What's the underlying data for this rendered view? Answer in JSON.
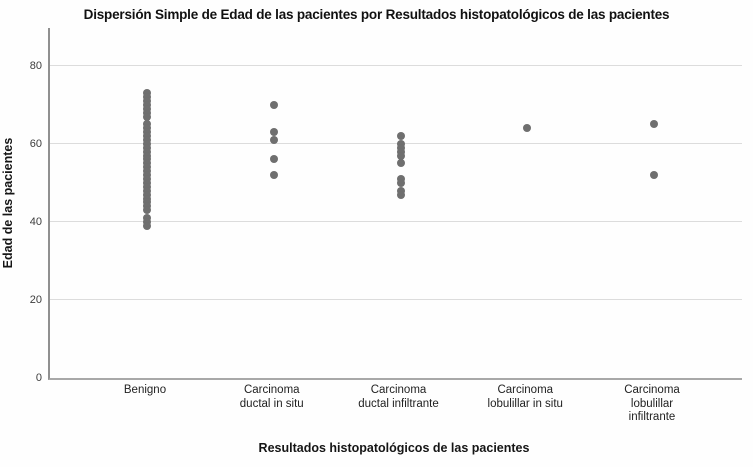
{
  "chart_data": {
    "type": "scatter",
    "title": "Dispersión Simple de Edad de las pacientes por Resultados histopatológicos de las pacientes",
    "xlabel": "Resultados histopatológicos de las pacientes",
    "ylabel": "Edad de las pacientes",
    "ylim": [
      0,
      89.7
    ],
    "yticks": [
      0,
      20,
      40,
      60,
      80
    ],
    "ytick_labels": [
      "0",
      "20",
      "40",
      "60",
      "80"
    ],
    "grid": true,
    "legend": false,
    "point_color": "#6f6f6f",
    "axis_color": "#a0a0a0",
    "gridline_color": "#dcdcdc",
    "categories": [
      {
        "label": "Benigno",
        "label_lines": [
          "Benigno"
        ],
        "ages": [
          73,
          72,
          71,
          70,
          69,
          68,
          67,
          65,
          64,
          63,
          62,
          61,
          60,
          59,
          58,
          57,
          56,
          55,
          54,
          53,
          52,
          51,
          50,
          49,
          48,
          47,
          46,
          45,
          44,
          43,
          41,
          40,
          39
        ]
      },
      {
        "label": "Carcinoma ductal in situ",
        "label_lines": [
          "Carcinoma",
          "ductal in situ"
        ],
        "ages": [
          70,
          63,
          61,
          56,
          52
        ]
      },
      {
        "label": "Carcinoma ductal infiltrante",
        "label_lines": [
          "Carcinoma",
          "ductal infiltrante"
        ],
        "ages": [
          62,
          60,
          59,
          58,
          57,
          55,
          51,
          50,
          48,
          47
        ]
      },
      {
        "label": "Carcinoma lobulillar in situ",
        "label_lines": [
          "Carcinoma",
          "lobulillar in situ"
        ],
        "ages": [
          64
        ]
      },
      {
        "label": "Carcinoma lobulillar infiltrante",
        "label_lines": [
          "Carcinoma",
          "lobulillar",
          "infiltrante"
        ],
        "ages": [
          65,
          52
        ]
      }
    ]
  }
}
